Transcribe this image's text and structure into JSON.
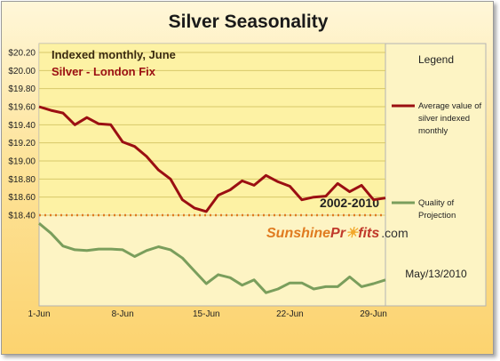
{
  "chart_data": {
    "type": "line",
    "title": "Silver Seasonality",
    "subtitle": "Indexed monthly, June",
    "series_label": "Silver - London Fix",
    "period_label": "2002-2010",
    "watermark": {
      "part1": "Sunshine",
      "part2": "Pr",
      "part3": "fits",
      "part4": ".com"
    },
    "date_label": "May/13/2010",
    "legend_title": "Legend",
    "x_ticks": [
      {
        "label": "1-Jun",
        "x": 0
      },
      {
        "label": "8-Jun",
        "x": 7
      },
      {
        "label": "15-Jun",
        "x": 14
      },
      {
        "label": "22-Jun",
        "x": 21
      },
      {
        "label": "29-Jun",
        "x": 28
      }
    ],
    "y_ticks": [
      "$18.40",
      "$18.60",
      "$18.80",
      "$19.00",
      "$19.20",
      "$19.40",
      "$19.60",
      "$19.80",
      "$20.00",
      "$20.20"
    ],
    "ylim": [
      18.4,
      20.2
    ],
    "xlim": [
      0,
      29
    ],
    "series": [
      {
        "name": "Average value of silver indexed monthly",
        "legend_lines": [
          "Average value of",
          "silver indexed",
          "monthly"
        ],
        "color": "#9b0f12",
        "x": [
          0,
          1,
          2,
          3,
          4,
          5,
          6,
          7,
          8,
          9,
          10,
          11,
          12,
          13,
          14,
          15,
          16,
          17,
          18,
          19,
          20,
          21,
          22,
          23,
          24,
          25,
          26,
          27,
          28,
          29
        ],
        "values": [
          19.6,
          19.56,
          19.53,
          19.4,
          19.48,
          19.41,
          19.4,
          19.21,
          19.16,
          19.05,
          18.9,
          18.8,
          18.57,
          18.48,
          18.44,
          18.62,
          18.68,
          18.78,
          18.73,
          18.84,
          18.77,
          18.72,
          18.57,
          18.6,
          18.61,
          18.75,
          18.66,
          18.73,
          18.57,
          18.59
        ]
      },
      {
        "name": "Quality of Projection",
        "legend_lines": [
          "Quality of",
          "Projection"
        ],
        "color": "#7a9e5c",
        "x": [
          0,
          1,
          2,
          3,
          4,
          5,
          6,
          7,
          8,
          9,
          10,
          11,
          12,
          13,
          14,
          15,
          16,
          17,
          18,
          19,
          20,
          21,
          22,
          23,
          24,
          25,
          26,
          27,
          28,
          29
        ],
        "values": [
          0.95,
          0.82,
          0.65,
          0.6,
          0.59,
          0.61,
          0.61,
          0.6,
          0.51,
          0.59,
          0.64,
          0.6,
          0.49,
          0.32,
          0.15,
          0.27,
          0.23,
          0.13,
          0.2,
          0.03,
          0.08,
          0.16,
          0.16,
          0.08,
          0.11,
          0.11,
          0.24,
          0.11,
          0.15,
          0.2
        ]
      }
    ],
    "quality_ylim": [
      -0.05,
      1.0
    ],
    "separator": {
      "style": "dotted",
      "color": "#e07b20"
    }
  }
}
